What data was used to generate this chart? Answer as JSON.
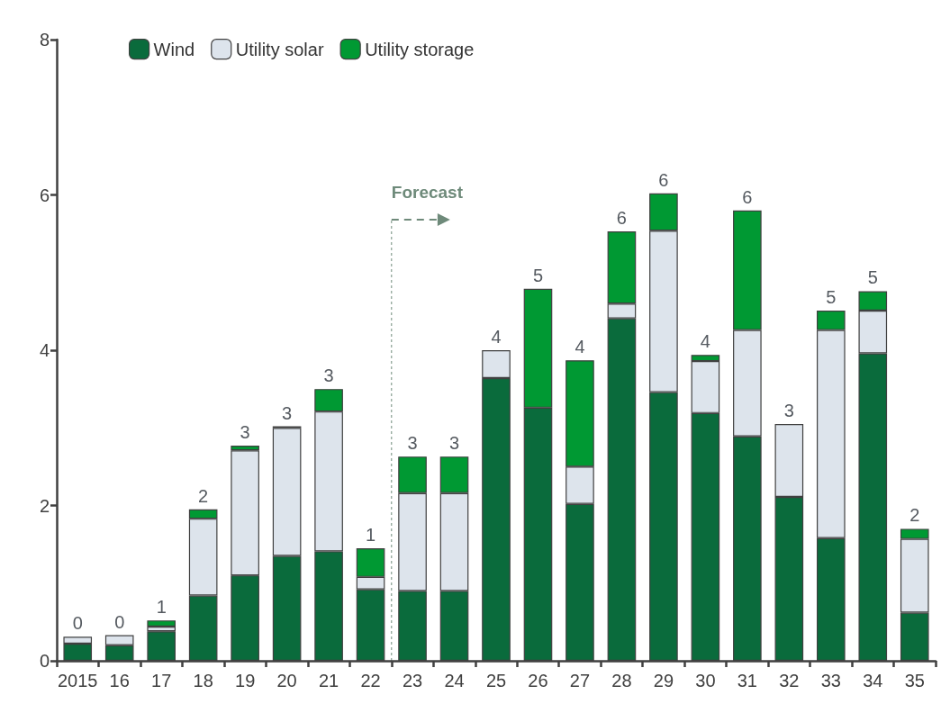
{
  "chart_data": {
    "type": "bar",
    "stacked": true,
    "categories": [
      "2015",
      "16",
      "17",
      "18",
      "19",
      "20",
      "21",
      "22",
      "23",
      "24",
      "25",
      "26",
      "27",
      "28",
      "29",
      "30",
      "31",
      "32",
      "33",
      "34",
      "35"
    ],
    "series": [
      {
        "name": "Wind",
        "color": "#0a6b3c",
        "values": [
          0.22,
          0.2,
          0.38,
          0.84,
          1.1,
          1.35,
          1.41,
          0.92,
          0.9,
          0.9,
          3.64,
          3.26,
          2.02,
          4.41,
          3.46,
          3.19,
          2.89,
          2.11,
          1.58,
          3.96,
          0.62
        ]
      },
      {
        "name": "Utility solar",
        "color": "#dde4ec",
        "values": [
          0.09,
          0.13,
          0.06,
          0.99,
          1.61,
          1.65,
          1.8,
          0.16,
          1.26,
          1.26,
          0.36,
          0,
          0.48,
          0.19,
          2.08,
          0.67,
          1.37,
          0.94,
          2.68,
          0.55,
          0.95
        ]
      },
      {
        "name": "Utility storage",
        "color": "#009933",
        "values": [
          0,
          0,
          0.08,
          0.12,
          0.06,
          0.02,
          0.29,
          0.37,
          0.47,
          0.47,
          0,
          1.53,
          1.37,
          0.93,
          0.48,
          0.08,
          1.54,
          0,
          0.25,
          0.25,
          0.13
        ]
      }
    ],
    "totals": [
      "0",
      "0",
      "1",
      "2",
      "3",
      "3",
      "3",
      "1",
      "3",
      "3",
      "4",
      "5",
      "4",
      "6",
      "6",
      "4",
      "6",
      "3",
      "5",
      "5",
      "2"
    ],
    "ylim": [
      0,
      8
    ],
    "yticks": [
      0,
      2,
      4,
      6,
      8
    ],
    "grid": false,
    "legend": "top left",
    "annotations": [
      "Forecast"
    ]
  }
}
